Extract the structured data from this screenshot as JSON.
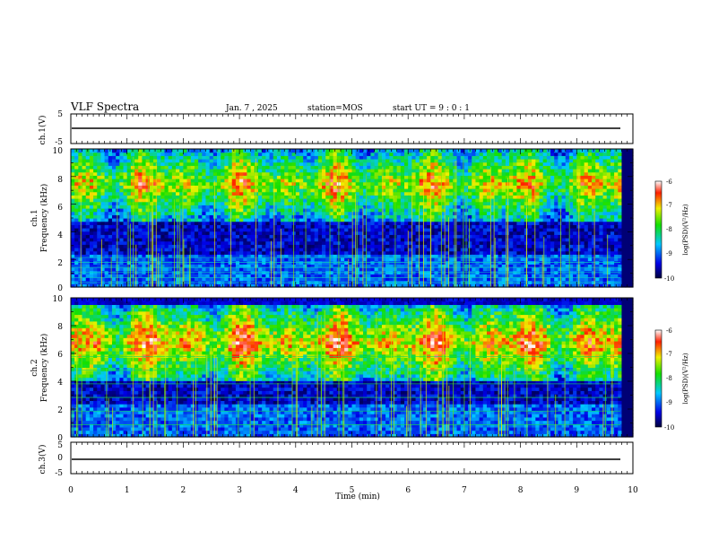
{
  "header": {
    "title": "VLF Spectra",
    "date": "Jan. 7 , 2025",
    "station": "station=MOS",
    "start": "start UT =  9 : 0 : 1"
  },
  "chart_data": [
    {
      "type": "line",
      "ylabel": "ch.1(V)",
      "ylim": [
        -5,
        5
      ],
      "ytick_labels": [
        "5",
        "-5"
      ],
      "series": [
        {
          "values": [
            -1.5
          ]
        }
      ]
    },
    {
      "type": "heatmap",
      "ylabel": "ch.1\nFrequency (kHz)",
      "xlim": [
        0,
        10
      ],
      "ylim": [
        0,
        10
      ],
      "ytick_labels": [
        "0",
        "2",
        "4",
        "6",
        "8",
        "10"
      ],
      "colorbar": {
        "label": "log(PSD)(V²/Hz)",
        "ticks": [
          "-6",
          "-7",
          "-8",
          "-9",
          "-10"
        ],
        "range": [
          -10,
          -6
        ]
      },
      "bands": [
        {
          "center_khz": 7.5,
          "level": -7.3
        },
        {
          "center_khz": 1.3,
          "level": -9.3
        }
      ],
      "colors": {
        "low": "#00007a",
        "high": "#c80000"
      }
    },
    {
      "type": "heatmap",
      "ylabel": "ch.2\nFrequency (kHz)",
      "xlim": [
        0,
        10
      ],
      "ylim": [
        0,
        10
      ],
      "ytick_labels": [
        "0",
        "2",
        "4",
        "6",
        "8",
        "10"
      ],
      "colorbar": {
        "label": "log(PSD)(V²/Hz)",
        "ticks": [
          "-6",
          "-7",
          "-8",
          "-9",
          "-10"
        ],
        "range": [
          -10,
          -6
        ]
      },
      "bands": [
        {
          "center_khz": 6.8,
          "level": -7.0
        },
        {
          "center_khz": 3.5,
          "level": -9.0
        }
      ],
      "colors": {
        "low": "#00007a",
        "high": "#c80000"
      }
    },
    {
      "type": "line",
      "ylabel": "ch.3(V)",
      "ylim": [
        -5,
        5
      ],
      "ytick_labels": [
        "5",
        "0",
        "-5"
      ],
      "xlabel": "Time (min)",
      "xlim": [
        0,
        10
      ],
      "xtick_labels": [
        "0",
        "1",
        "2",
        "3",
        "4",
        "5",
        "6",
        "7",
        "8",
        "9",
        "10"
      ],
      "series": [
        {
          "values": [
            -1.5
          ]
        }
      ]
    }
  ]
}
